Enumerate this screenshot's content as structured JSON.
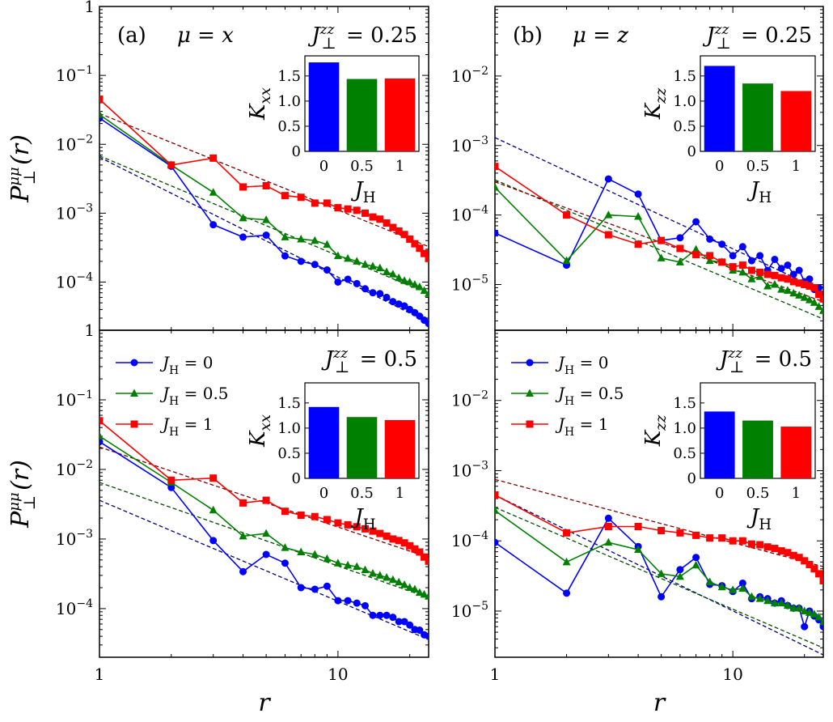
{
  "chart_data": [
    {
      "type": "line",
      "panel": "(a)",
      "title": "μ = x",
      "annotation": "J⊥zz = 0.25",
      "ylabel": "P⊥μμ(r)",
      "xlabel": "",
      "xscale": "log",
      "yscale": "log",
      "xlim": [
        1,
        24
      ],
      "ylim": [
        2e-05,
        1.0
      ],
      "x_ticks": [
        "1",
        "10"
      ],
      "y_ticks": [
        "10⁻¹",
        "10⁻²",
        "10⁻³",
        "10⁻⁴"
      ],
      "legend": null,
      "series": [
        {
          "name": "J_H = 0",
          "color": "#0000ff",
          "marker": "circle",
          "x": [
            1,
            2,
            3,
            4,
            5,
            6,
            7,
            8,
            9,
            10,
            11,
            12,
            13,
            14,
            15,
            16,
            17,
            18,
            19,
            20,
            21,
            22,
            23,
            24
          ],
          "y": [
            0.024,
            0.0048,
            0.00068,
            0.00045,
            0.00048,
            0.00024,
            0.0002,
            0.00018,
            0.00015,
            0.0001,
            0.00011,
            9.5e-05,
            8e-05,
            7e-05,
            6.8e-05,
            6e-05,
            5.2e-05,
            4.8e-05,
            4.5e-05,
            4e-05,
            3.6e-05,
            3.2e-05,
            2.8e-05,
            2.5e-05
          ],
          "fit": {
            "a": 0.0065,
            "b": -1.74
          }
        },
        {
          "name": "J_H = 0.5",
          "color": "#008000",
          "marker": "triangle",
          "x": [
            1,
            2,
            3,
            4,
            5,
            6,
            7,
            8,
            9,
            10,
            11,
            12,
            13,
            14,
            15,
            16,
            17,
            18,
            19,
            20,
            21,
            22,
            23,
            24
          ],
          "y": [
            0.027,
            0.005,
            0.002,
            0.00085,
            0.0008,
            0.00045,
            0.00042,
            0.0004,
            0.00035,
            0.00024,
            0.00022,
            0.0002,
            0.00018,
            0.00017,
            0.00016,
            0.00014,
            0.00013,
            0.000115,
            0.000105,
            0.0001,
            9.2e-05,
            8.5e-05,
            7.5e-05,
            6.8e-05
          ],
          "fit": {
            "a": 0.0068,
            "b": -1.45
          }
        },
        {
          "name": "J_H = 1",
          "color": "#ff0000",
          "marker": "square",
          "x": [
            1,
            2,
            3,
            4,
            5,
            6,
            7,
            8,
            9,
            10,
            11,
            12,
            13,
            14,
            15,
            16,
            17,
            18,
            19,
            20,
            21,
            22,
            23,
            24
          ],
          "y": [
            0.045,
            0.005,
            0.0063,
            0.0024,
            0.0025,
            0.0018,
            0.0017,
            0.0014,
            0.0014,
            0.0012,
            0.00115,
            0.0011,
            0.001,
            0.00088,
            0.00082,
            0.00072,
            0.00062,
            0.00055,
            0.00049,
            0.00042,
            0.00036,
            0.00031,
            0.00026,
            0.00022
          ],
          "fit": {
            "a": 0.028,
            "b": -1.4
          }
        }
      ],
      "inset": {
        "type": "bar",
        "ylabel": "K_xx",
        "xlabel": "J_H",
        "categories": [
          "0",
          "0.5",
          "1"
        ],
        "values": [
          1.77,
          1.44,
          1.45
        ],
        "colors": [
          "#0000ff",
          "#008000",
          "#ff0000"
        ],
        "ylim": [
          0,
          1.9
        ],
        "y_ticks": [
          "0",
          "0.5",
          "1.0",
          "1.5"
        ]
      }
    },
    {
      "type": "line",
      "panel": "(b)",
      "title": "μ = z",
      "annotation": "J⊥zz = 0.25",
      "ylabel": "",
      "xlabel": "",
      "xscale": "log",
      "yscale": "log",
      "xlim": [
        1,
        24
      ],
      "ylim": [
        2.2e-06,
        0.1
      ],
      "x_ticks": [
        "1",
        "10"
      ],
      "y_ticks": [
        "10⁻²",
        "10⁻³",
        "10⁻⁴",
        "10⁻⁵"
      ],
      "legend": null,
      "series": [
        {
          "name": "J_H = 0",
          "color": "#0000ff",
          "marker": "circle",
          "x": [
            1,
            2,
            3,
            4,
            5,
            6,
            7,
            8,
            9,
            10,
            11,
            12,
            13,
            14,
            15,
            16,
            17,
            18,
            19,
            20,
            21,
            22,
            23,
            24
          ],
          "y": [
            5.5e-05,
            1.9e-05,
            0.00033,
            0.0002,
            4.3e-05,
            4.7e-05,
            8e-05,
            4.5e-05,
            3.8e-05,
            2.6e-05,
            3.5e-05,
            2.2e-05,
            2.6e-05,
            1.6e-05,
            2.3e-05,
            1.7e-05,
            1.9e-05,
            1.4e-05,
            1.6e-05,
            1.1e-05,
            1.2e-05,
            8.5e-06,
            9e-06,
            7e-06
          ],
          "fit": {
            "a": 0.0013,
            "b": -1.6
          }
        },
        {
          "name": "J_H = 0.5",
          "color": "#008000",
          "marker": "triangle",
          "x": [
            1,
            2,
            3,
            4,
            5,
            6,
            7,
            8,
            9,
            10,
            11,
            12,
            13,
            14,
            15,
            16,
            17,
            18,
            19,
            20,
            21,
            22,
            23,
            24
          ],
          "y": [
            0.00025,
            2.2e-05,
            0.0001,
            9.5e-05,
            2.4e-05,
            2.1e-05,
            3.2e-05,
            2.2e-05,
            2.1e-05,
            1.6e-05,
            1.5e-05,
            1.2e-05,
            1.3e-05,
            9.5e-06,
            1e-05,
            8.5e-06,
            8.2e-06,
            7.5e-06,
            7e-06,
            6.5e-06,
            6e-06,
            5.5e-06,
            4.8e-06,
            4.2e-06
          ],
          "fit": {
            "a": 0.00032,
            "b": -1.45
          }
        },
        {
          "name": "J_H = 1",
          "color": "#ff0000",
          "marker": "square",
          "x": [
            1,
            2,
            3,
            4,
            5,
            6,
            7,
            8,
            9,
            10,
            11,
            12,
            13,
            14,
            15,
            16,
            17,
            18,
            19,
            20,
            21,
            22,
            23,
            24
          ],
          "y": [
            0.0005,
            0.0001,
            5.2e-05,
            3.8e-05,
            4.3e-05,
            3.3e-05,
            2.7e-05,
            2.6e-05,
            2.1e-05,
            1.8e-05,
            1.9e-05,
            1.6e-05,
            1.5e-05,
            1.4e-05,
            1.35e-05,
            1.25e-05,
            1.2e-05,
            1.1e-05,
            1.05e-05,
            1e-05,
            9.5e-06,
            9e-06,
            7.2e-06,
            6.2e-06
          ],
          "fit": {
            "a": 0.0003,
            "b": -1.25
          }
        }
      ],
      "inset": {
        "type": "bar",
        "ylabel": "K_zz",
        "xlabel": "J_H",
        "categories": [
          "0",
          "0.5",
          "1"
        ],
        "values": [
          1.7,
          1.35,
          1.2
        ],
        "colors": [
          "#0000ff",
          "#008000",
          "#ff0000"
        ],
        "ylim": [
          0,
          1.9
        ],
        "y_ticks": [
          "0",
          "0.5",
          "1.0",
          "1.5"
        ]
      }
    },
    {
      "type": "line",
      "panel": "",
      "title": "",
      "annotation": "J⊥zz = 0.5",
      "ylabel": "P⊥μμ(r)",
      "xlabel": "r",
      "xscale": "log",
      "yscale": "log",
      "xlim": [
        1,
        24
      ],
      "ylim": [
        2e-05,
        1.0
      ],
      "x_ticks": [
        "1",
        "10"
      ],
      "y_ticks": [
        "10⁻¹",
        "10⁻²",
        "10⁻³",
        "10⁻⁴"
      ],
      "legend": "top-left",
      "series": [
        {
          "name": "J_H = 0",
          "color": "#0000ff",
          "marker": "circle",
          "x": [
            1,
            2,
            3,
            4,
            5,
            6,
            7,
            8,
            9,
            10,
            11,
            12,
            13,
            14,
            15,
            16,
            17,
            18,
            19,
            20,
            21,
            22,
            23,
            24
          ],
          "y": [
            0.025,
            0.0055,
            0.00095,
            0.00034,
            0.0006,
            0.00045,
            0.0002,
            0.00019,
            0.00021,
            0.00013,
            0.00013,
            0.00012,
            0.00011,
            8e-05,
            8e-05,
            8e-05,
            7.5e-05,
            6.5e-05,
            6.5e-05,
            5.8e-05,
            5e-05,
            4.9e-05,
            4.2e-05,
            4e-05
          ],
          "fit": {
            "a": 0.0036,
            "b": -1.45
          }
        },
        {
          "name": "J_H = 0.5",
          "color": "#008000",
          "marker": "triangle",
          "x": [
            1,
            2,
            3,
            4,
            5,
            6,
            7,
            8,
            9,
            10,
            11,
            12,
            13,
            14,
            15,
            16,
            17,
            18,
            19,
            20,
            21,
            22,
            23,
            24
          ],
          "y": [
            0.03,
            0.0065,
            0.0026,
            0.0011,
            0.0012,
            0.00075,
            0.00065,
            0.0006,
            0.00052,
            0.00045,
            0.00042,
            0.0004,
            0.00036,
            0.00032,
            0.0003,
            0.00028,
            0.00026,
            0.00024,
            0.00022,
            0.0002,
            0.00019,
            0.00017,
            0.00016,
            0.00015
          ],
          "fit": {
            "a": 0.0065,
            "b": -1.2
          }
        },
        {
          "name": "J_H = 1",
          "color": "#ff0000",
          "marker": "square",
          "x": [
            1,
            2,
            3,
            4,
            5,
            6,
            7,
            8,
            9,
            10,
            11,
            12,
            13,
            14,
            15,
            16,
            17,
            18,
            19,
            20,
            21,
            22,
            23,
            24
          ],
          "y": [
            0.05,
            0.007,
            0.0075,
            0.0033,
            0.0036,
            0.0025,
            0.0022,
            0.0021,
            0.0019,
            0.0017,
            0.0016,
            0.0015,
            0.0014,
            0.0013,
            0.0012,
            0.0011,
            0.001,
            0.00095,
            0.00088,
            0.0008,
            0.00072,
            0.00065,
            0.00055,
            0.00048
          ],
          "fit": {
            "a": 0.021,
            "b": -1.15
          }
        }
      ],
      "inset": {
        "type": "bar",
        "ylabel": "K_xx",
        "xlabel": "J_H",
        "categories": [
          "0",
          "0.5",
          "1"
        ],
        "values": [
          1.42,
          1.22,
          1.16
        ],
        "colors": [
          "#0000ff",
          "#008000",
          "#ff0000"
        ],
        "ylim": [
          0,
          1.9
        ],
        "y_ticks": [
          "0",
          "0.5",
          "1.0",
          "1.5"
        ]
      }
    },
    {
      "type": "line",
      "panel": "",
      "title": "",
      "annotation": "J⊥zz = 0.5",
      "ylabel": "",
      "xlabel": "r",
      "xscale": "log",
      "yscale": "log",
      "xlim": [
        1,
        24
      ],
      "ylim": [
        2.2e-06,
        0.1
      ],
      "x_ticks": [
        "1",
        "10"
      ],
      "y_ticks": [
        "10⁻²",
        "10⁻³",
        "10⁻⁴",
        "10⁻⁵"
      ],
      "legend": "top-left",
      "series": [
        {
          "name": "J_H = 0",
          "color": "#0000ff",
          "marker": "circle",
          "x": [
            1,
            2,
            3,
            4,
            5,
            6,
            7,
            8,
            9,
            10,
            11,
            12,
            13,
            14,
            15,
            16,
            17,
            18,
            19,
            20,
            21,
            22,
            23,
            24
          ],
          "y": [
            9.5e-05,
            1.8e-05,
            0.00021,
            8.3e-05,
            1.6e-05,
            3.9e-05,
            5.8e-05,
            2.4e-05,
            2.3e-05,
            1.9e-05,
            2.5e-05,
            1.5e-05,
            1.6e-05,
            1.5e-05,
            1.3e-05,
            1.4e-05,
            1.2e-05,
            1.1e-05,
            1.1e-05,
            6e-06,
            1e-05,
            8.5e-06,
            7.5e-06,
            6e-06
          ],
          "fit": {
            "a": 0.00045,
            "b": -1.65
          }
        },
        {
          "name": "J_H = 0.5",
          "color": "#008000",
          "marker": "triangle",
          "x": [
            1,
            2,
            3,
            4,
            5,
            6,
            7,
            8,
            9,
            10,
            11,
            12,
            13,
            14,
            15,
            16,
            17,
            18,
            19,
            20,
            21,
            22,
            23,
            24
          ],
          "y": [
            0.00027,
            5e-05,
            9.5e-05,
            7.5e-05,
            3.4e-05,
            3.1e-05,
            4.5e-05,
            2.6e-05,
            2.2e-05,
            2e-05,
            2.1e-05,
            1.6e-05,
            1.5e-05,
            1.4e-05,
            1.3e-05,
            1.3e-05,
            1.2e-05,
            1.1e-05,
            1.1e-05,
            1e-05,
            9.5e-06,
            9e-06,
            8.2e-06,
            7e-06
          ],
          "fit": {
            "a": 0.0003,
            "b": -1.45
          }
        },
        {
          "name": "J_H = 1",
          "color": "#ff0000",
          "marker": "square",
          "x": [
            1,
            2,
            3,
            4,
            5,
            6,
            7,
            8,
            9,
            10,
            11,
            12,
            13,
            14,
            15,
            16,
            17,
            18,
            19,
            20,
            21,
            22,
            23,
            24
          ],
          "y": [
            0.00045,
            0.00013,
            0.00016,
            0.00016,
            0.00014,
            0.00013,
            0.00012,
            0.00011,
            0.00011,
            0.0001,
            0.0001,
            9e-05,
            8.8e-05,
            8.2e-05,
            7.8e-05,
            7.2e-05,
            6.8e-05,
            6.2e-05,
            5.8e-05,
            5.2e-05,
            4.6e-05,
            4e-05,
            3.4e-05,
            2.7e-05
          ],
          "fit": {
            "a": 0.00075,
            "b": -0.9
          }
        }
      ],
      "inset": {
        "type": "bar",
        "ylabel": "K_zz",
        "xlabel": "J_H",
        "categories": [
          "0",
          "0.5",
          "1"
        ],
        "values": [
          1.33,
          1.15,
          1.03
        ],
        "colors": [
          "#0000ff",
          "#008000",
          "#ff0000"
        ],
        "ylim": [
          0,
          1.9
        ],
        "y_ticks": [
          "0",
          "0.5",
          "1.0",
          "1.5"
        ]
      }
    }
  ]
}
